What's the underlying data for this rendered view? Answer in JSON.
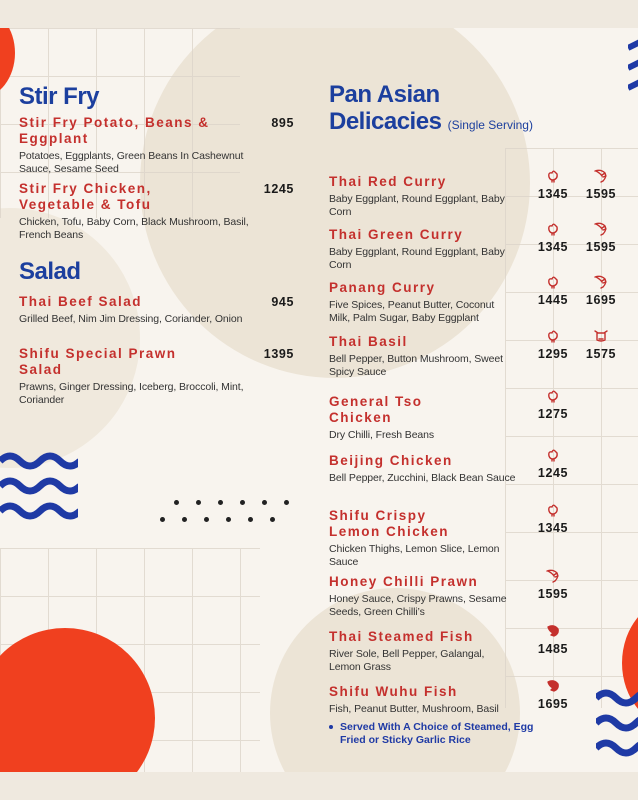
{
  "colors": {
    "heading": "#1c3f9e",
    "item_title": "#c4302d",
    "accent_red": "#f0401f",
    "wave_blue": "#1f3aa5",
    "beige": "#e9e1d3"
  },
  "left": {
    "sections": [
      {
        "heading": "Stir Fry",
        "items": [
          {
            "title": "Stir Fry Potato, Beans & Eggplant",
            "desc": "Potatoes, Eggplants, Green Beans In Cashewnut Sauce, Sesame Seed",
            "price": "895"
          },
          {
            "title": "Stir Fry Chicken, Vegetable & Tofu",
            "desc": "Chicken, Tofu, Baby Corn, Black Mushroom, Basil, French Beans",
            "price": "1245"
          }
        ]
      },
      {
        "heading": "Salad",
        "items": [
          {
            "title": "Thai Beef Salad",
            "desc": "Grilled Beef, Nim Jim Dressing, Coriander, Onion",
            "price": "945"
          },
          {
            "title": "Shifu Special Prawn Salad",
            "desc": "Prawns, Ginger Dressing, Iceberg, Broccoli, Mint, Coriander",
            "price": "1395"
          }
        ]
      }
    ]
  },
  "right": {
    "heading_line1": "Pan Asian",
    "heading_line2": "Delicacies",
    "serving_note": "(Single Serving)",
    "items": [
      {
        "title": "Thai Red Curry",
        "desc": "Baby Eggplant, Round Eggplant, Baby Corn",
        "prices": [
          {
            "icon": "chicken-icon",
            "value": "1345"
          },
          {
            "icon": "prawn-icon",
            "value": "1595"
          }
        ]
      },
      {
        "title": "Thai Green Curry",
        "desc": "Baby Eggplant, Round Eggplant, Baby Corn",
        "prices": [
          {
            "icon": "chicken-icon",
            "value": "1345"
          },
          {
            "icon": "prawn-icon",
            "value": "1595"
          }
        ]
      },
      {
        "title": "Panang Curry",
        "desc": "Five Spices, Peanut Butter, Coconut Milk, Palm Sugar, Baby Eggplant",
        "prices": [
          {
            "icon": "chicken-icon",
            "value": "1445"
          },
          {
            "icon": "prawn-icon",
            "value": "1695"
          }
        ]
      },
      {
        "title": "Thai Basil",
        "desc": "Bell Pepper, Button Mushroom, Sweet Spicy Sauce",
        "prices": [
          {
            "icon": "chicken-icon",
            "value": "1295"
          },
          {
            "icon": "beef-icon",
            "value": "1575"
          }
        ]
      },
      {
        "title": "General Tso Chicken",
        "desc": "Dry Chilli, Fresh Beans",
        "prices": [
          {
            "icon": "chicken-icon",
            "value": "1275"
          }
        ]
      },
      {
        "title": "Beijing Chicken",
        "desc": "Bell Pepper, Zucchini, Black Bean Sauce",
        "prices": [
          {
            "icon": "chicken-icon",
            "value": "1245"
          }
        ]
      },
      {
        "title": "Shifu Crispy Lemon Chicken",
        "desc": "Chicken Thighs, Lemon Slice, Lemon Sauce",
        "prices": [
          {
            "icon": "chicken-icon",
            "value": "1345"
          }
        ]
      },
      {
        "title": "Honey Chilli Prawn",
        "desc": "Honey Sauce, Crispy Prawns, Sesame Seeds, Green Chilli’s",
        "prices": [
          {
            "icon": "prawn-icon",
            "value": "1595"
          }
        ]
      },
      {
        "title": "Thai Steamed Fish",
        "desc": "River Sole, Bell Pepper, Galangal, Lemon Grass",
        "prices": [
          {
            "icon": "fish-icon",
            "value": "1485"
          }
        ]
      },
      {
        "title": "Shifu Wuhu Fish",
        "desc": "Fish, Peanut Butter, Mushroom, Basil",
        "prices": [
          {
            "icon": "fish-icon",
            "value": "1695"
          }
        ]
      }
    ],
    "footnote": "Served With A Choice of Steamed, Egg Fried or Sticky Garlic Rice"
  }
}
